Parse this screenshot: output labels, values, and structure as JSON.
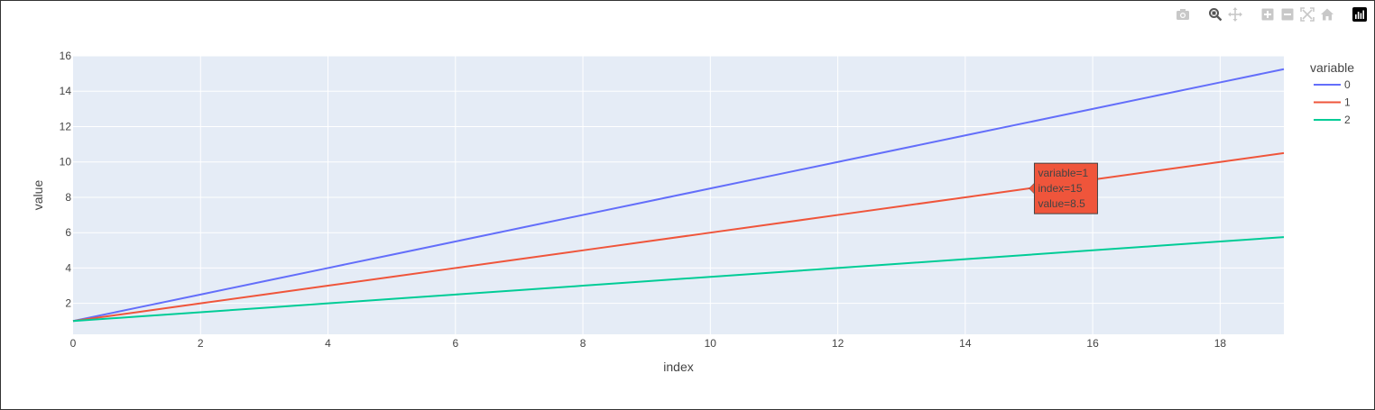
{
  "toolbar": {
    "buttons": [
      {
        "name": "camera-icon"
      },
      {
        "name": "zoom-icon"
      },
      {
        "name": "pan-icon"
      },
      {
        "name": "zoom-in-icon"
      },
      {
        "name": "zoom-out-icon"
      },
      {
        "name": "autoscale-icon"
      },
      {
        "name": "reset-axes-icon"
      },
      {
        "name": "plotly-logo-icon"
      }
    ]
  },
  "chart_data": {
    "type": "line",
    "title": "",
    "xlabel": "index",
    "ylabel": "value",
    "xlim": [
      0,
      19
    ],
    "ylim": [
      0.25,
      16
    ],
    "x_ticks": [
      "0",
      "2",
      "4",
      "6",
      "8",
      "10",
      "12",
      "14",
      "16",
      "18"
    ],
    "y_ticks": [
      "2",
      "4",
      "6",
      "8",
      "10",
      "12",
      "14",
      "16"
    ],
    "x": [
      0,
      1,
      2,
      3,
      4,
      5,
      6,
      7,
      8,
      9,
      10,
      11,
      12,
      13,
      14,
      15,
      16,
      17,
      18,
      19
    ],
    "grid": true,
    "legend": {
      "title": "variable",
      "position": "right"
    },
    "series": [
      {
        "name": "0",
        "color": "#636efa",
        "values": [
          1,
          1.75,
          2.5,
          3.25,
          4,
          4.75,
          5.5,
          6.25,
          7,
          7.75,
          8.5,
          9.25,
          10,
          10.75,
          11.5,
          12.25,
          13,
          13.75,
          14.5,
          15.25
        ]
      },
      {
        "name": "1",
        "color": "#ef553b",
        "values": [
          1,
          1.5,
          2,
          2.5,
          3,
          3.5,
          4,
          4.5,
          5,
          5.5,
          6,
          6.5,
          7,
          7.5,
          8,
          8.5,
          9,
          9.5,
          10,
          10.5
        ]
      },
      {
        "name": "2",
        "color": "#00cc96",
        "values": [
          1,
          1.25,
          1.5,
          1.75,
          2,
          2.25,
          2.5,
          2.75,
          3,
          3.25,
          3.5,
          3.75,
          4,
          4.25,
          4.5,
          4.75,
          5,
          5.25,
          5.5,
          5.75
        ]
      }
    ],
    "hover": {
      "series_index": 1,
      "x": 15,
      "y": 8.5,
      "lines": [
        "variable=1",
        "index=15",
        "value=8.5"
      ],
      "color": "#ef553b"
    }
  }
}
